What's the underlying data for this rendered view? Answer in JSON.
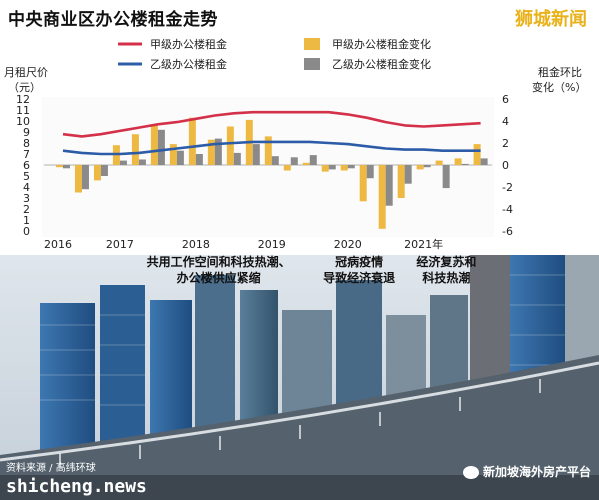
{
  "header": {
    "title": "中央商业区办公楼租金走势",
    "brand": "狮城新闻"
  },
  "footer": {
    "source": "资料来源 / 高纬环球",
    "site": "shicheng.news",
    "wechat": "新加坡海外房产平台"
  },
  "chart_data": {
    "type": "line+bar",
    "title": "中央商业区办公楼租金走势",
    "left_axis": {
      "label_line1": "月租尺价",
      "label_line2": "（元）",
      "range": [
        0,
        12
      ],
      "ticks": [
        0,
        1,
        2,
        3,
        4,
        5,
        6,
        7,
        8,
        9,
        10,
        11,
        12
      ]
    },
    "right_axis": {
      "label_line1": "租金环比",
      "label_line2": "变化（%）",
      "range": [
        -6,
        6
      ],
      "ticks": [
        -6,
        -4,
        -2,
        0,
        2,
        4,
        6
      ]
    },
    "x_axis": {
      "range": [
        2016,
        2021.9
      ],
      "ticks": [
        {
          "v": 2016,
          "label": "2016"
        },
        {
          "v": 2017,
          "label": "2017"
        },
        {
          "v": 2018,
          "label": "2018"
        },
        {
          "v": 2019,
          "label": "2019"
        },
        {
          "v": 2020,
          "label": "2020"
        },
        {
          "v": 2021,
          "label": "2021年"
        }
      ]
    },
    "legend": [
      {
        "name": "甲级办公楼租金",
        "kind": "line",
        "color": "#d4304a"
      },
      {
        "name": "甲级办公楼租金变化",
        "kind": "bar",
        "color": "#edb943"
      },
      {
        "name": "乙级办公楼租金",
        "kind": "line",
        "color": "#2c5ba8"
      },
      {
        "name": "乙级办公楼租金变化",
        "kind": "bar",
        "color": "#8a8a8a"
      }
    ],
    "x": [
      2016.25,
      2016.5,
      2016.75,
      2017.0,
      2017.25,
      2017.5,
      2017.75,
      2018.0,
      2018.25,
      2018.5,
      2018.75,
      2019.0,
      2019.25,
      2019.5,
      2019.75,
      2020.0,
      2020.25,
      2020.5,
      2020.75,
      2021.0,
      2021.25,
      2021.5,
      2021.75
    ],
    "series": [
      {
        "name": "甲级办公楼租金",
        "axis": "left",
        "values": [
          8.8,
          8.6,
          8.8,
          9.1,
          9.4,
          9.7,
          9.9,
          10.2,
          10.5,
          10.7,
          10.8,
          10.8,
          10.8,
          10.8,
          10.8,
          10.6,
          10.3,
          9.9,
          9.6,
          9.5,
          9.6,
          9.7,
          9.8
        ]
      },
      {
        "name": "乙级办公楼租金",
        "axis": "left",
        "values": [
          7.3,
          7.1,
          7.0,
          7.0,
          7.1,
          7.3,
          7.5,
          7.7,
          7.9,
          8.0,
          8.1,
          8.1,
          8.1,
          8.1,
          8.0,
          7.9,
          7.7,
          7.5,
          7.4,
          7.4,
          7.3,
          7.3,
          7.3
        ]
      },
      {
        "name": "甲级办公楼租金变化",
        "axis": "right",
        "values": [
          -0.2,
          -2.5,
          -1.4,
          1.8,
          2.8,
          3.7,
          1.9,
          4.3,
          2.3,
          3.5,
          4.1,
          2.6,
          -0.5,
          0.2,
          -0.6,
          -0.5,
          -3.3,
          -5.8,
          -3.0,
          -0.4,
          0.4,
          0.6,
          1.9
        ]
      },
      {
        "name": "乙级办公楼租金变化",
        "axis": "right",
        "values": [
          -0.3,
          -2.2,
          -1.0,
          0.4,
          0.5,
          3.2,
          1.3,
          1.0,
          2.4,
          1.1,
          1.9,
          0.8,
          0.7,
          0.9,
          -0.4,
          -0.3,
          -1.2,
          -3.7,
          -1.7,
          -0.2,
          -2.1,
          0.1,
          0.6
        ]
      }
    ],
    "annotations": [
      {
        "x": 2018.3,
        "line1": "共用工作空间和科技热潮、",
        "line2": "办公楼供应紧缩"
      },
      {
        "x": 2020.15,
        "line1": "冠病疫情",
        "line2": "导致经济衰退"
      },
      {
        "x": 2021.3,
        "line1": "经济复苏和",
        "line2": "科技热潮"
      }
    ]
  }
}
